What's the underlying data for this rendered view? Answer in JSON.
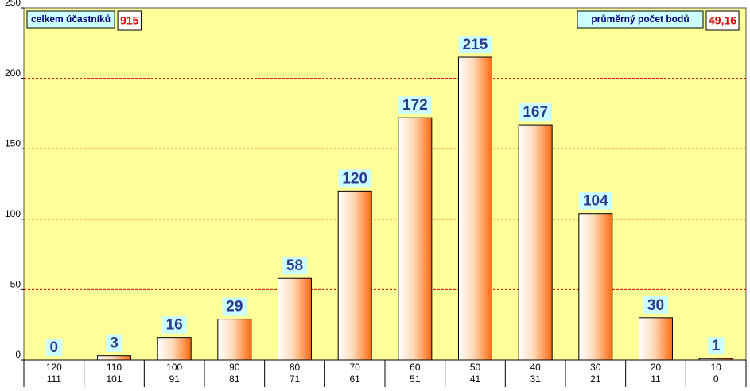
{
  "chart_data": {
    "type": "bar",
    "categories": [
      [
        "120",
        "111"
      ],
      [
        "110",
        "101"
      ],
      [
        "100",
        "91"
      ],
      [
        "90",
        "81"
      ],
      [
        "80",
        "71"
      ],
      [
        "70",
        "61"
      ],
      [
        "60",
        "51"
      ],
      [
        "50",
        "41"
      ],
      [
        "40",
        "31"
      ],
      [
        "30",
        "21"
      ],
      [
        "20",
        "11"
      ],
      [
        "10",
        "0"
      ]
    ],
    "values": [
      0,
      3,
      16,
      29,
      58,
      120,
      172,
      215,
      167,
      104,
      30,
      1
    ],
    "color": "#ff6a10",
    "ylim": [
      0,
      250
    ],
    "yticks": [
      0,
      50,
      100,
      150,
      200,
      250
    ],
    "grid": true,
    "annotations": [
      {
        "label": "celkem účastníků",
        "value": "915"
      },
      {
        "label": "průměrný počet bodů",
        "value": "49,16"
      }
    ]
  }
}
